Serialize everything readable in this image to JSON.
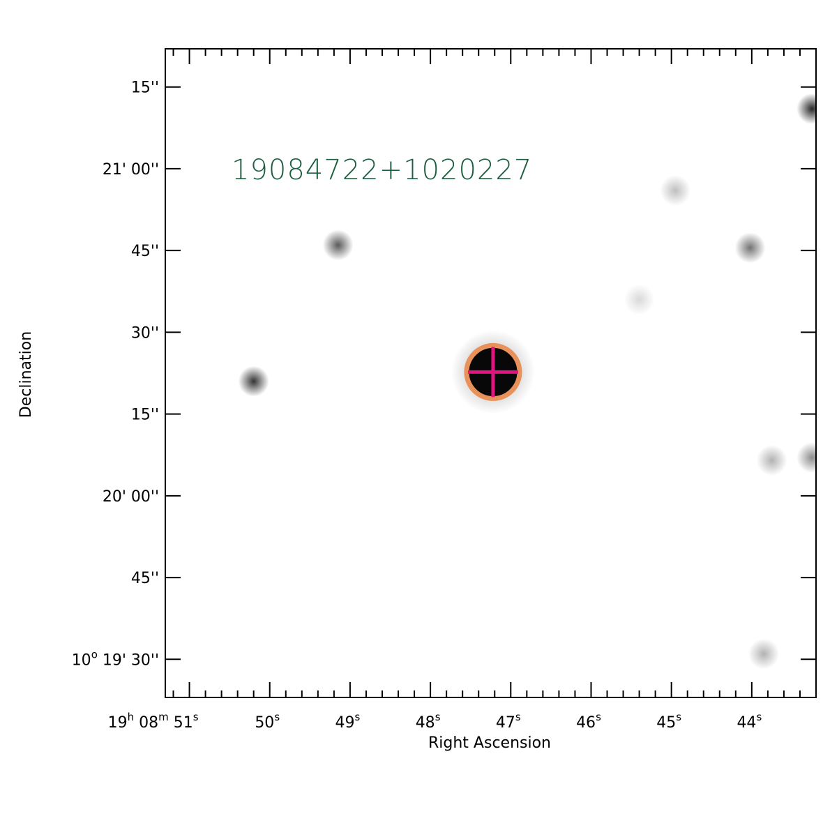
{
  "chart_data": {
    "type": "image",
    "xlabel": "Right Ascension",
    "ylabel": "Declination",
    "x_ticks": [
      {
        "ra_seconds": 51,
        "parts": [
          [
            "19",
            "h"
          ],
          [
            "08",
            "m"
          ],
          [
            "51",
            "s"
          ]
        ]
      },
      {
        "ra_seconds": 50,
        "parts": [
          [
            "50",
            "s"
          ]
        ]
      },
      {
        "ra_seconds": 49,
        "parts": [
          [
            "49",
            "s"
          ]
        ]
      },
      {
        "ra_seconds": 48,
        "parts": [
          [
            "48",
            "s"
          ]
        ]
      },
      {
        "ra_seconds": 47,
        "parts": [
          [
            "47",
            "s"
          ]
        ]
      },
      {
        "ra_seconds": 46,
        "parts": [
          [
            "46",
            "s"
          ]
        ]
      },
      {
        "ra_seconds": 45,
        "parts": [
          [
            "45",
            "s"
          ]
        ]
      },
      {
        "ra_seconds": 44,
        "parts": [
          [
            "44",
            "s"
          ]
        ]
      }
    ],
    "y_ticks": [
      {
        "dec_arcsec_offset": 75,
        "text": "15''"
      },
      {
        "dec_arcsec_offset": 60,
        "text": "21' 00''"
      },
      {
        "dec_arcsec_offset": 45,
        "text": "45''"
      },
      {
        "dec_arcsec_offset": 30,
        "text": "30''"
      },
      {
        "dec_arcsec_offset": 15,
        "text": "15''"
      },
      {
        "dec_arcsec_offset": 0,
        "text": "20' 00''"
      },
      {
        "dec_arcsec_offset": -15,
        "text": "45''"
      },
      {
        "dec_arcsec_offset": -30,
        "degree_prefix": "10",
        "degree_sup": "o",
        "text": "19' 30''"
      }
    ],
    "xlim_ra_seconds": [
      51.3,
      43.2
    ],
    "ylim_dec_arcsec_offset": [
      -37,
      82
    ],
    "source": {
      "name": "19084722+1020227",
      "ra_seconds": 47.22,
      "dec_arcsec_offset": 22.7,
      "marker_circle_color": "#E8915A",
      "marker_cross_color": "#E0157F",
      "name_color": "#1E5E40"
    },
    "field_stars": [
      {
        "ra_seconds": 50.2,
        "dec_arcsec_offset": 21.0,
        "brightness": 0.8
      },
      {
        "ra_seconds": 49.15,
        "dec_arcsec_offset": 46.0,
        "brightness": 0.65
      },
      {
        "ra_seconds": 44.95,
        "dec_arcsec_offset": 56.0,
        "brightness": 0.25
      },
      {
        "ra_seconds": 44.02,
        "dec_arcsec_offset": 45.5,
        "brightness": 0.55
      },
      {
        "ra_seconds": 43.25,
        "dec_arcsec_offset": 71.0,
        "brightness": 0.85
      },
      {
        "ra_seconds": 43.25,
        "dec_arcsec_offset": 7.0,
        "brightness": 0.45
      },
      {
        "ra_seconds": 43.75,
        "dec_arcsec_offset": 6.5,
        "brightness": 0.3
      },
      {
        "ra_seconds": 43.85,
        "dec_arcsec_offset": -29.0,
        "brightness": 0.3
      },
      {
        "ra_seconds": 45.4,
        "dec_arcsec_offset": 36.0,
        "brightness": 0.15
      }
    ],
    "grid": false
  }
}
